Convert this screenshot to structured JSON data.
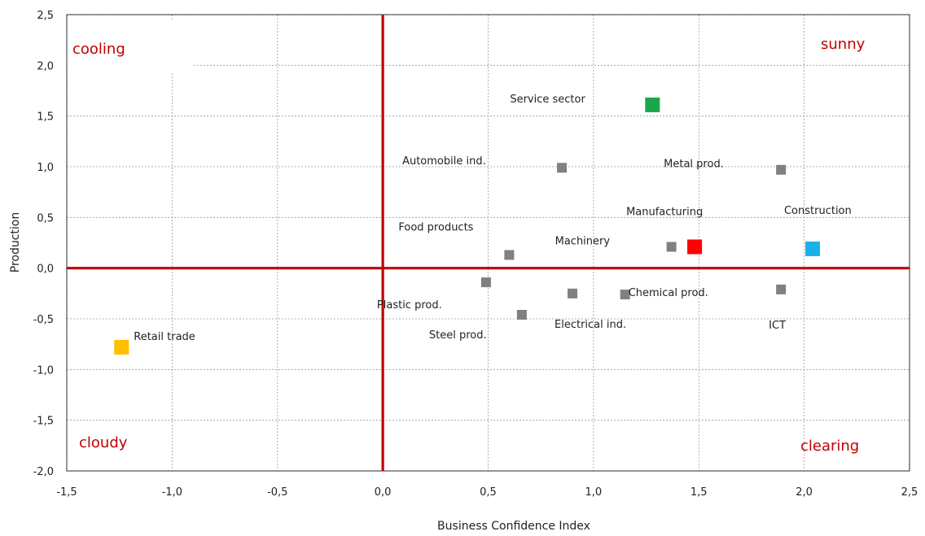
{
  "chart_data": {
    "type": "scatter",
    "xlabel": "Business Confidence Index",
    "ylabel": "Production",
    "xlim": [
      -1.5,
      2.5
    ],
    "ylim": [
      -2.0,
      2.5
    ],
    "x_ticks": [
      "-1,5",
      "-1,0",
      "-0,5",
      "0,0",
      "0,5",
      "1,0",
      "1,5",
      "2,0",
      "2,5"
    ],
    "y_ticks": [
      "2,5",
      "2,0",
      "1,5",
      "1,0",
      "0,5",
      "0,0",
      "-0,5",
      "-1,0",
      "-1,5",
      "-2,0"
    ],
    "grid": true,
    "quadrant_labels": {
      "top_left": "cooling",
      "top_right": "sunny",
      "bottom_left": "cloudy",
      "bottom_right": "clearing"
    },
    "points": [
      {
        "label": "Service sector",
        "x": 1.28,
        "y": 1.61,
        "color": "#1aa64a",
        "size": "large"
      },
      {
        "label": "Automobile ind.",
        "x": 0.85,
        "y": 0.99,
        "color": "#808080",
        "size": "small"
      },
      {
        "label": "Metal prod.",
        "x": 1.89,
        "y": 0.97,
        "color": "#808080",
        "size": "small"
      },
      {
        "label": "Manufacturing",
        "x": 1.48,
        "y": 0.21,
        "color": "#ff0000",
        "size": "large"
      },
      {
        "label": "Construction",
        "x": 2.04,
        "y": 0.19,
        "color": "#1ab0ea",
        "size": "large"
      },
      {
        "label": "Machinery",
        "x": 1.37,
        "y": 0.21,
        "color": "#808080",
        "size": "small"
      },
      {
        "label": "Food products",
        "x": 0.6,
        "y": 0.13,
        "color": "#808080",
        "size": "small"
      },
      {
        "label": "Plastic prod.",
        "x": 0.49,
        "y": -0.14,
        "color": "#808080",
        "size": "small"
      },
      {
        "label": "Electrical ind.",
        "x": 0.9,
        "y": -0.25,
        "color": "#808080",
        "size": "small"
      },
      {
        "label": "Chemical prod.",
        "x": 1.15,
        "y": -0.26,
        "color": "#808080",
        "size": "small"
      },
      {
        "label": "ICT",
        "x": 1.89,
        "y": -0.21,
        "color": "#808080",
        "size": "small"
      },
      {
        "label": "Steel prod.",
        "x": 0.66,
        "y": -0.46,
        "color": "#808080",
        "size": "small"
      },
      {
        "label": "Retail trade",
        "x": -1.24,
        "y": -0.78,
        "color": "#ffbf00",
        "size": "large"
      }
    ],
    "colors": {
      "axis_accent": "#c00000",
      "quadrant_text": "#c00000"
    }
  }
}
